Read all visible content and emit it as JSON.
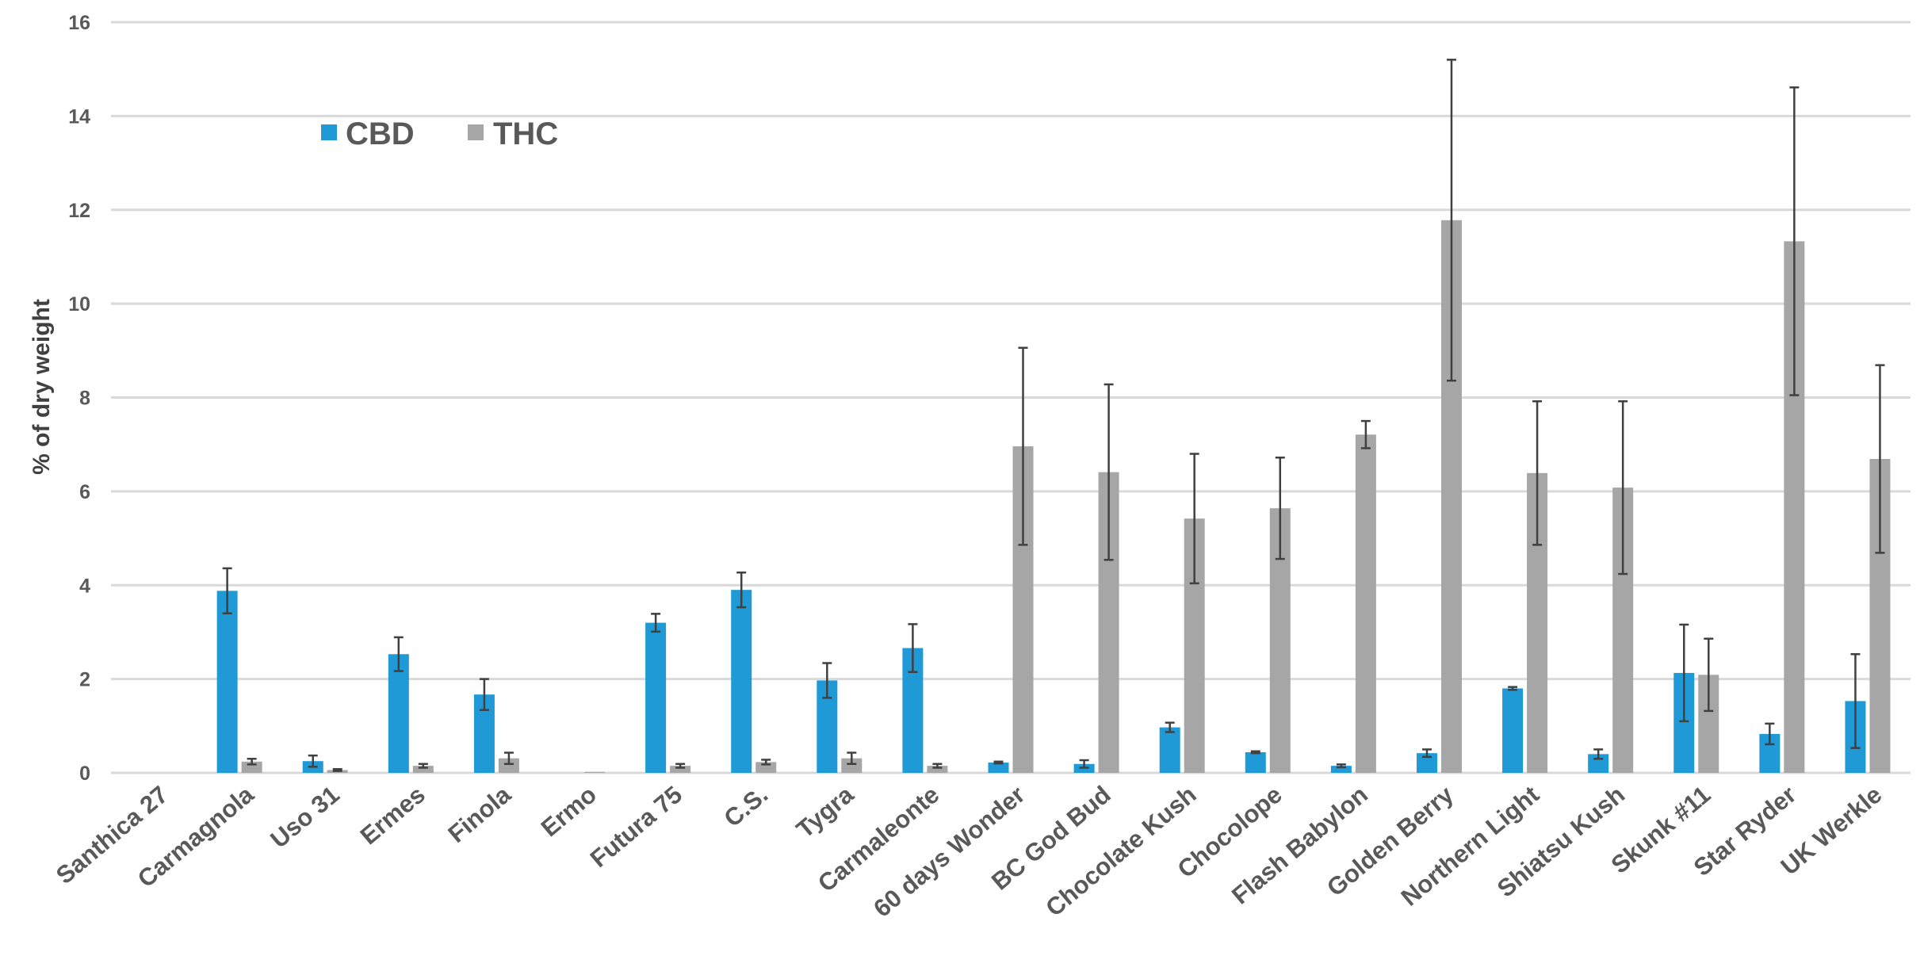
{
  "chart_data": {
    "type": "bar",
    "ylabel": "% of dry weight",
    "ylim": [
      0,
      16
    ],
    "yticks": [
      0,
      2,
      4,
      6,
      8,
      10,
      12,
      14,
      16
    ],
    "grid": true,
    "legend_position": "top-left",
    "categories": [
      "Santhica 27",
      "Carmagnola",
      "Uso 31",
      "Ermes",
      "Finola",
      "Ermo",
      "Futura 75",
      "C.S.",
      "Tygra",
      "Carmaleonte",
      "60 days Wonder",
      "BC God Bud",
      "Chocolate Kush",
      "Chocolope",
      "Flash Babylon",
      "Golden Berry",
      "Northern Light",
      "Shiatsu Kush",
      "Skunk #11",
      "Star Ryder",
      "UK Werkle"
    ],
    "series": [
      {
        "name": "CBD",
        "color": "#1f9ad6",
        "values": [
          0,
          3.88,
          0.25,
          2.53,
          1.67,
          0,
          3.2,
          3.9,
          1.97,
          2.66,
          0.22,
          0.19,
          0.97,
          0.44,
          0.15,
          0.42,
          1.8,
          0.4,
          2.13,
          0.83,
          1.53
        ],
        "errors": [
          0,
          0.48,
          0.12,
          0.36,
          0.33,
          0,
          0.19,
          0.37,
          0.37,
          0.51,
          0.02,
          0.08,
          0.1,
          0.02,
          0.03,
          0.08,
          0.03,
          0.1,
          1.03,
          0.22,
          1.0
        ]
      },
      {
        "name": "THC",
        "color": "#a6a6a6",
        "values": [
          0,
          0.24,
          0.06,
          0.15,
          0.31,
          0.02,
          0.15,
          0.23,
          0.31,
          0.15,
          6.96,
          6.41,
          5.42,
          5.64,
          7.21,
          11.78,
          6.39,
          6.08,
          2.09,
          11.33,
          6.69
        ],
        "errors": [
          0,
          0.06,
          0.02,
          0.04,
          0.12,
          0,
          0.04,
          0.05,
          0.12,
          0.04,
          2.1,
          1.87,
          1.38,
          1.08,
          0.29,
          3.42,
          1.53,
          1.84,
          0.77,
          3.28,
          2.0
        ]
      }
    ]
  }
}
